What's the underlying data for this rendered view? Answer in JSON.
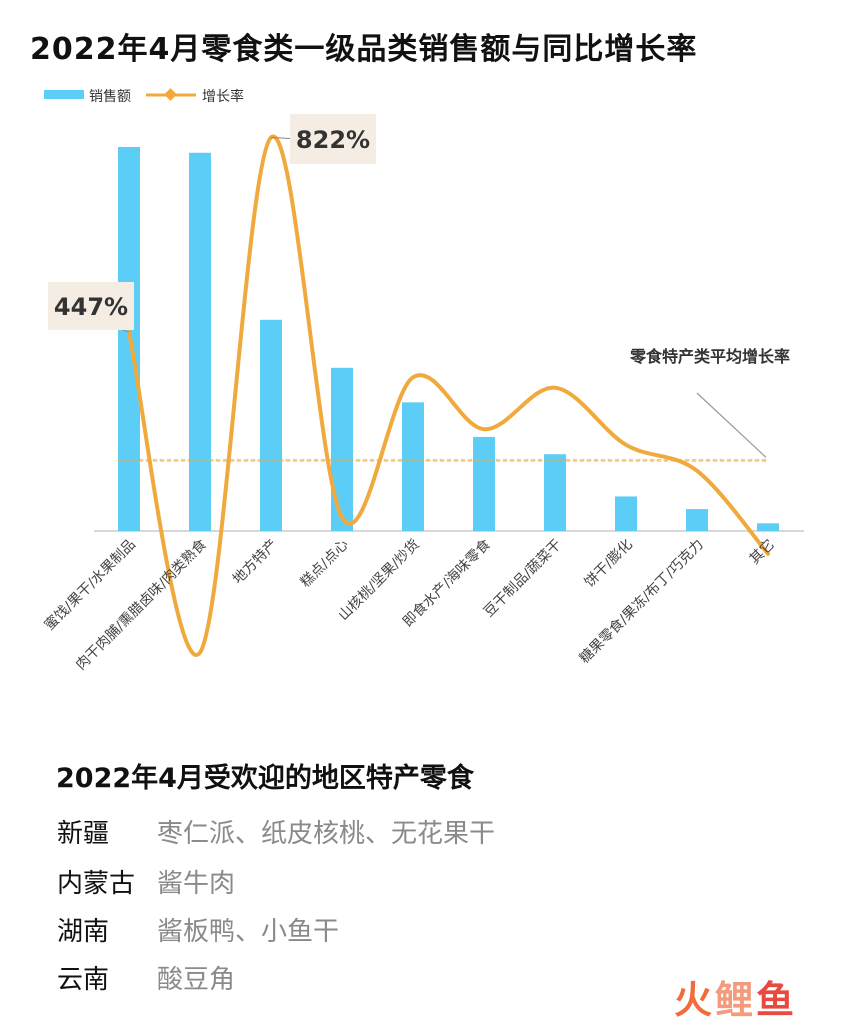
{
  "chart_data": {
    "type": "bar",
    "title": "2022年4月零食类一级品类销售额与同比增长率",
    "legend": {
      "position": "top-left",
      "bar_label": "销售额",
      "line_label": "增长率"
    },
    "categories": [
      "蜜饯/果干/水果制品",
      "肉干肉脯/熏腊卤味/肉类熟食",
      "地方特产",
      "糕点/点心",
      "山核桃/坚果/炒货",
      "即食水产/海味零食",
      "豆干制品/蔬菜干",
      "饼干/膨化",
      "糖果零食/果冻/布丁/巧克力",
      "其它"
    ],
    "series": [
      {
        "name": "销售额",
        "type": "bar",
        "color": "#5ccdf7",
        "values": [
          100,
          98.5,
          55,
          42.5,
          33.5,
          24.5,
          20,
          9,
          5.7,
          2
        ]
      },
      {
        "name": "增长率",
        "type": "line",
        "color": "#f0a93c",
        "smooth": true,
        "values": [
          447,
          -170,
          822,
          90,
          360,
          260,
          340,
          230,
          180,
          20
        ]
      }
    ],
    "reference_line": {
      "label": "零食特产类平均增长率",
      "value": 200,
      "color": "#f0a93c",
      "style": "dotted"
    },
    "annotations": [
      {
        "text": "447%",
        "category_index": 0,
        "value": 447
      },
      {
        "text": "822%",
        "category_index": 2,
        "value": 822
      }
    ],
    "ylim_bar": [
      0,
      100
    ],
    "ylim_line": [
      -300,
      1000
    ],
    "grid": false
  },
  "section": {
    "title": "2022年4月受欢迎的地区特产零食",
    "rows": [
      {
        "region": "新疆",
        "items": "枣仁派、纸皮核桃、无花果干"
      },
      {
        "region": "内蒙古",
        "items": "酱牛肉"
      },
      {
        "region": "湖南",
        "items": "酱板鸭、小鱼干"
      },
      {
        "region": "云南",
        "items": "酸豆角"
      }
    ]
  },
  "watermark": {
    "char1": "火",
    "char2": "鲤",
    "char3": "鱼"
  }
}
